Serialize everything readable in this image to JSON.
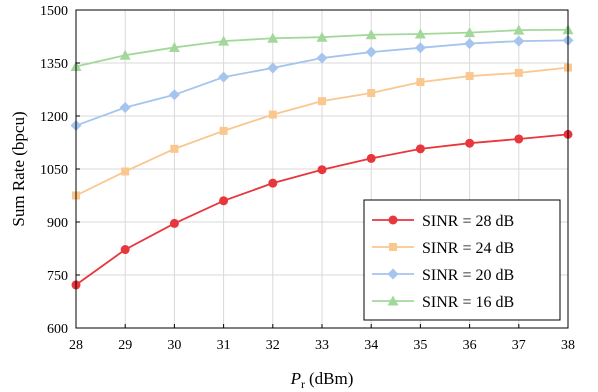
{
  "chart_data": {
    "type": "line",
    "xlabel_main": "P",
    "xlabel_sub": "r",
    "xlabel_unit": "(dBm)",
    "ylabel": "Sum Rate (bpcu)",
    "x": [
      28,
      29,
      30,
      31,
      32,
      33,
      34,
      35,
      36,
      37,
      38
    ],
    "xlim": [
      28,
      38
    ],
    "ylim": [
      600,
      1500
    ],
    "yticks": [
      600,
      750,
      900,
      1050,
      1200,
      1350,
      1500
    ],
    "grid": true,
    "legend_position": "bottom-right",
    "series": [
      {
        "name": "SINR = 28 dB",
        "color": "#e8363d",
        "marker": "circle",
        "values": [
          722,
          822,
          896,
          960,
          1010,
          1048,
          1080,
          1107,
          1123,
          1135,
          1148
        ]
      },
      {
        "name": "SINR = 24 dB",
        "color": "#fac78f",
        "marker": "square",
        "values": [
          975,
          1043,
          1107,
          1158,
          1204,
          1242,
          1265,
          1296,
          1313,
          1322,
          1337
        ]
      },
      {
        "name": "SINR = 20 dB",
        "color": "#a6c5ee",
        "marker": "diamond",
        "values": [
          1173,
          1224,
          1260,
          1310,
          1336,
          1364,
          1381,
          1393,
          1405,
          1412,
          1414
        ]
      },
      {
        "name": "SINR = 16 dB",
        "color": "#a3d89b",
        "marker": "triangle",
        "values": [
          1340,
          1372,
          1394,
          1412,
          1420,
          1423,
          1430,
          1432,
          1436,
          1443,
          1444
        ]
      }
    ]
  }
}
